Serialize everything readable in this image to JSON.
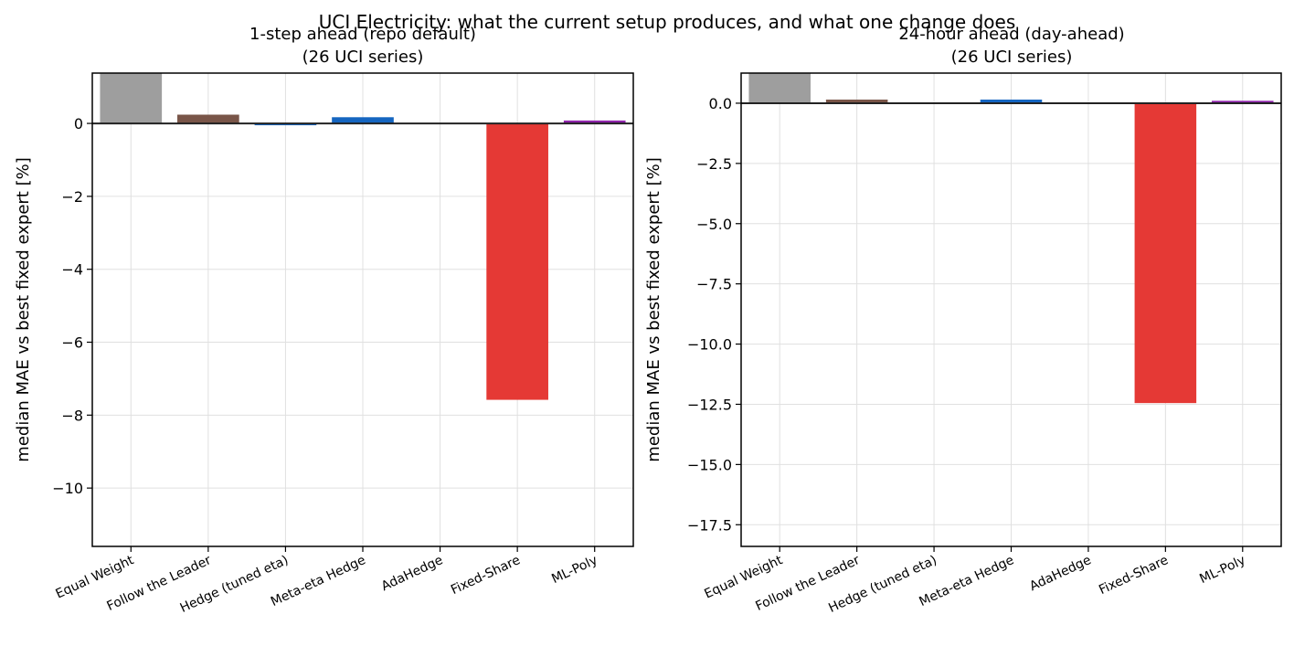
{
  "figure": {
    "title": "UCI Electricity: what the current setup produces, and what one change does"
  },
  "chart_data": [
    {
      "type": "bar",
      "title": "1-step ahead (repo default)",
      "subtitle": "(26 UCI series)",
      "xlabel": "",
      "ylabel": "median MAE vs best fixed expert [%]",
      "categories": [
        "Equal Weight",
        "Follow the Leader",
        "Hedge (tuned eta)",
        "Meta-eta Hedge",
        "AdaHedge",
        "Fixed-Share",
        "ML-Poly"
      ],
      "values": [
        1.4,
        0.24,
        -0.05,
        0.17,
        0.0,
        -7.58,
        0.08
      ],
      "colors": [
        "#9e9e9e",
        "#795548",
        "#1565c0",
        "#1565c0",
        "#2e7d32",
        "#e53935",
        "#8e24aa"
      ],
      "ylim": [
        -11.6,
        1.38
      ],
      "yticks": [
        0,
        -2,
        -4,
        -6,
        -8,
        -10
      ],
      "ytick_labels": [
        "0",
        "−2",
        "−4",
        "−6",
        "−8",
        "−10"
      ],
      "grid": true
    },
    {
      "type": "bar",
      "title": "24-hour ahead (day-ahead)",
      "subtitle": "(26 UCI series)",
      "xlabel": "",
      "ylabel": "median MAE vs best fixed expert [%]",
      "categories": [
        "Equal Weight",
        "Follow the Leader",
        "Hedge (tuned eta)",
        "Meta-eta Hedge",
        "AdaHedge",
        "Fixed-Share",
        "ML-Poly"
      ],
      "values": [
        1.5,
        0.15,
        -0.02,
        0.15,
        -0.03,
        -12.45,
        0.1
      ],
      "colors": [
        "#9e9e9e",
        "#795548",
        "#1565c0",
        "#1565c0",
        "#2e7d32",
        "#e53935",
        "#8e24aa"
      ],
      "ylim": [
        -18.4,
        1.25
      ],
      "yticks": [
        0,
        -2.5,
        -5,
        -7.5,
        -10,
        -12.5,
        -15,
        -17.5
      ],
      "ytick_labels": [
        "0.0",
        "−2.5",
        "−5.0",
        "−7.5",
        "−10.0",
        "−12.5",
        "−15.0",
        "−17.5"
      ],
      "grid": true
    }
  ]
}
